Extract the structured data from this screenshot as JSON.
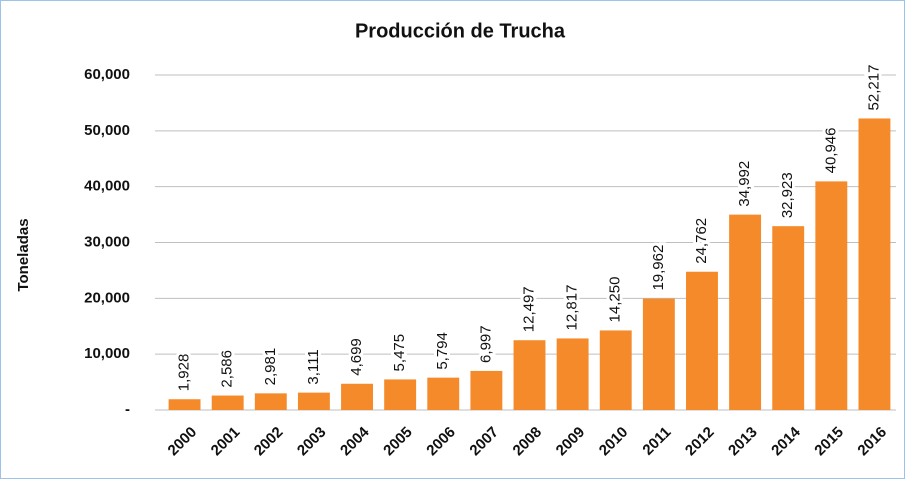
{
  "chart_data": {
    "type": "bar",
    "title": "Producción de Trucha",
    "y_label": "Toneladas",
    "categories": [
      "2000",
      "2001",
      "2002",
      "2003",
      "2004",
      "2005",
      "2006",
      "2007",
      "2008",
      "2009",
      "2010",
      "2011",
      "2012",
      "2013",
      "2014",
      "2015",
      "2016"
    ],
    "values": [
      1928,
      2586,
      2981,
      3111,
      4699,
      5475,
      5794,
      6997,
      12497,
      12817,
      14250,
      19962,
      24762,
      34992,
      32923,
      40946,
      52217
    ],
    "value_labels": [
      "1,928",
      "2,586",
      "2,981",
      "3,111",
      "4,699",
      "5,475",
      "5,794",
      "6,997",
      "12,497",
      "12,817",
      "14,250",
      "19,962",
      "24,762",
      "34,992",
      "32,923",
      "40,946",
      "52,217"
    ],
    "color": "#f58a2a",
    "ylim": [
      0,
      60000
    ],
    "yticks": [
      {
        "value": 0,
        "label": "-"
      },
      {
        "value": 10000,
        "label": "10,000"
      },
      {
        "value": 20000,
        "label": "20,000"
      },
      {
        "value": 30000,
        "label": "30,000"
      },
      {
        "value": 40000,
        "label": "40,000"
      },
      {
        "value": 50000,
        "label": "50,000"
      },
      {
        "value": 60000,
        "label": "60,000"
      }
    ],
    "grid": true
  }
}
